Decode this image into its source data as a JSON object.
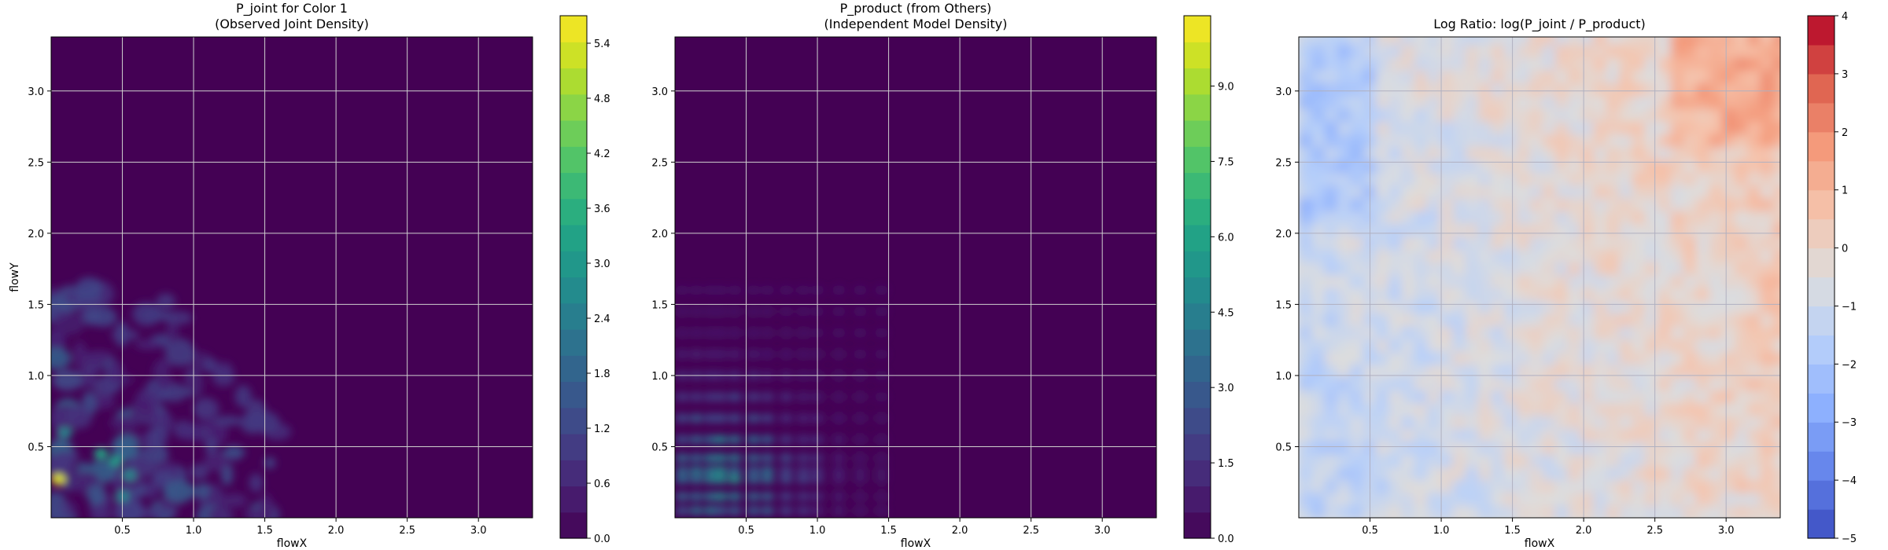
{
  "chart_data": [
    {
      "type": "heatmap",
      "title_lines": [
        "P_joint for Color 1",
        "(Observed Joint Density)"
      ],
      "xlabel": "flowX",
      "ylabel": "flowY",
      "xlim": [
        0.0,
        3.38
      ],
      "ylim": [
        0.0,
        3.38
      ],
      "x_ticks": [
        0.5,
        1.0,
        1.5,
        2.0,
        2.5,
        3.0
      ],
      "x_tick_labels": [
        "0.5",
        "1.0",
        "1.5",
        "2.0",
        "2.5",
        "3.0"
      ],
      "y_ticks": [
        0.5,
        1.0,
        1.5,
        2.0,
        2.5,
        3.0
      ],
      "y_tick_labels": [
        "0.5",
        "1.0",
        "1.5",
        "2.0",
        "2.5",
        "3.0"
      ],
      "grid": true,
      "colormap": "viridis",
      "colorbar": {
        "vmin": 0.0,
        "vmax": 5.7,
        "levels": 20,
        "ticks": [
          0.0,
          0.6,
          1.2,
          1.8,
          2.4,
          3.0,
          3.6,
          4.2,
          4.8,
          5.4
        ],
        "tick_labels": [
          "0.0",
          "0.6",
          "1.2",
          "1.8",
          "2.4",
          "3.0",
          "3.6",
          "4.2",
          "4.8",
          "5.4"
        ]
      },
      "note_density_region": "non-zero density concentrated at flowX < 1.6, flowY < 1.7; peak ~5.6 near (0.05, 0.27)"
    },
    {
      "type": "heatmap",
      "title_lines": [
        "P_product (from Others)",
        "(Independent Model Density)"
      ],
      "xlabel": "flowX",
      "ylabel": "",
      "xlim": [
        0.0,
        3.38
      ],
      "ylim": [
        0.0,
        3.38
      ],
      "x_ticks": [
        0.5,
        1.0,
        1.5,
        2.0,
        2.5,
        3.0
      ],
      "x_tick_labels": [
        "0.5",
        "1.0",
        "1.5",
        "2.0",
        "2.5",
        "3.0"
      ],
      "y_ticks": [
        0.5,
        1.0,
        1.5,
        2.0,
        2.5,
        3.0
      ],
      "y_tick_labels": [
        "0.5",
        "1.0",
        "1.5",
        "2.0",
        "2.5",
        "3.0"
      ],
      "grid": true,
      "colormap": "viridis",
      "colorbar": {
        "vmin": 0.0,
        "vmax": 10.4,
        "levels": 20,
        "ticks": [
          0.0,
          1.5,
          3.0,
          4.5,
          6.0,
          7.5,
          9.0
        ],
        "tick_labels": [
          "0.0",
          "1.5",
          "3.0",
          "4.5",
          "6.0",
          "7.5",
          "9.0"
        ]
      }
    },
    {
      "type": "heatmap",
      "title_lines": [
        "Log Ratio: log(P_joint / P_product)"
      ],
      "xlabel": "flowX",
      "ylabel": "",
      "xlim": [
        0.0,
        3.38
      ],
      "ylim": [
        0.0,
        3.38
      ],
      "x_ticks": [
        0.5,
        1.0,
        1.5,
        2.0,
        2.5,
        3.0
      ],
      "x_tick_labels": [
        "0.5",
        "1.0",
        "1.5",
        "2.0",
        "2.5",
        "3.0"
      ],
      "y_ticks": [
        0.5,
        1.0,
        1.5,
        2.0,
        2.5,
        3.0
      ],
      "y_tick_labels": [
        "0.5",
        "1.0",
        "1.5",
        "2.0",
        "2.5",
        "3.0"
      ],
      "grid": true,
      "colormap": "coolwarm",
      "colorbar": {
        "vmin": -5,
        "vmax": 4,
        "levels": 18,
        "ticks": [
          -5,
          -4,
          -3,
          -2,
          -1,
          0,
          1,
          2,
          3,
          4
        ],
        "tick_labels": [
          "−5",
          "−4",
          "−3",
          "−2",
          "−1",
          "0",
          "1",
          "2",
          "3",
          "4"
        ]
      }
    }
  ]
}
